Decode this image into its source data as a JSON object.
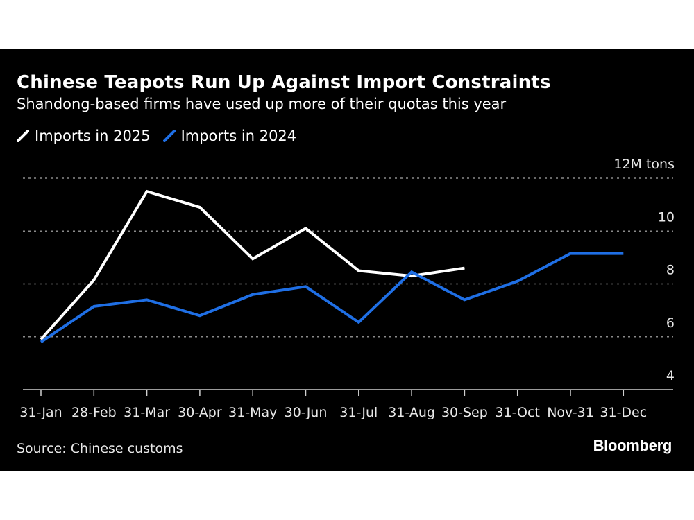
{
  "chart_data": {
    "type": "line",
    "title": "Chinese Teapots Run Up Against Import Constraints",
    "subtitle": "Shandong-based firms have used up more of their quotas this year",
    "xlabel": "",
    "ylabel": "",
    "y_unit_label": "12M tons",
    "categories": [
      "31-Jan",
      "28-Feb",
      "31-Mar",
      "30-Apr",
      "31-May",
      "30-Jun",
      "31-Jul",
      "31-Aug",
      "30-Sep",
      "31-Oct",
      "Nov-31",
      "31-Dec"
    ],
    "yticks": [
      4,
      6,
      8,
      10,
      12
    ],
    "ytick_labels": [
      "4",
      "6",
      "8",
      "10",
      "12M tons"
    ],
    "ylim": [
      4,
      12
    ],
    "grid": true,
    "legend_position": "top-left",
    "series": [
      {
        "name": "Imports in 2025",
        "color": "#ffffff",
        "values": [
          5.9,
          8.15,
          11.5,
          10.9,
          8.95,
          10.1,
          8.5,
          8.3,
          8.6,
          null,
          null,
          null
        ]
      },
      {
        "name": "Imports in 2024",
        "color": "#1f6fe5",
        "values": [
          5.8,
          7.15,
          7.4,
          6.8,
          7.6,
          7.9,
          6.55,
          8.45,
          7.4,
          8.1,
          9.15,
          9.15
        ]
      }
    ]
  },
  "footer": {
    "source": "Source: Chinese customs",
    "brand": "Bloomberg"
  }
}
